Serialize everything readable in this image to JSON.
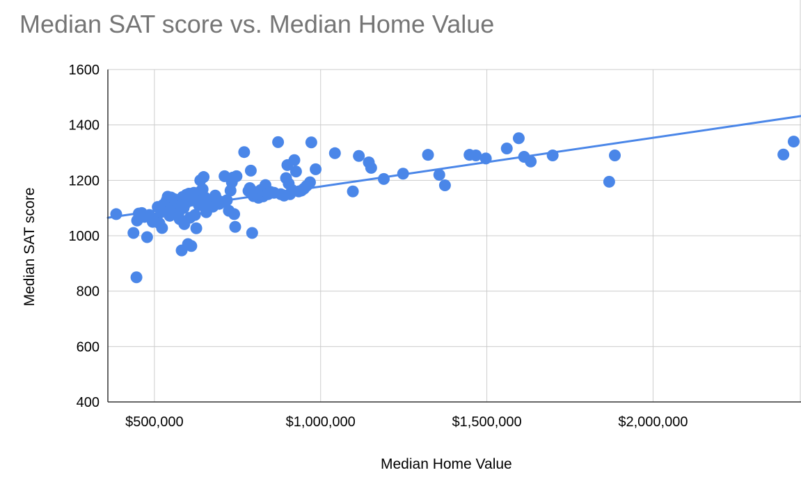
{
  "chart_data": {
    "type": "scatter",
    "title": "Median SAT score vs. Median Home Value",
    "xlabel": "Median Home Value",
    "ylabel": "Median SAT score",
    "xlim": [
      360000,
      2445000
    ],
    "ylim": [
      400,
      1600
    ],
    "x_ticks": [
      {
        "value": 500000,
        "label": "$500,000"
      },
      {
        "value": 1000000,
        "label": "$1,000,000"
      },
      {
        "value": 1500000,
        "label": "$1,500,000"
      },
      {
        "value": 2000000,
        "label": "$2,000,000"
      }
    ],
    "y_ticks": [
      {
        "value": 400,
        "label": "400"
      },
      {
        "value": 600,
        "label": "600"
      },
      {
        "value": 800,
        "label": "800"
      },
      {
        "value": 1000,
        "label": "1000"
      },
      {
        "value": 1200,
        "label": "1200"
      },
      {
        "value": 1400,
        "label": "1400"
      },
      {
        "value": 1600,
        "label": "1600"
      }
    ],
    "grid": true,
    "legend": "none",
    "colors": {
      "points": "#4a86e8",
      "trendline": "#4a86e8",
      "grid": "#cccccc",
      "title": "#757575"
    },
    "trendline": {
      "type": "linear",
      "from": [
        360000,
        1065
      ],
      "to": [
        2445000,
        1432
      ]
    },
    "series": [
      {
        "points": [
          [
            385000,
            1078
          ],
          [
            437000,
            1010
          ],
          [
            446000,
            850
          ],
          [
            453000,
            1080
          ],
          [
            448000,
            1055
          ],
          [
            462000,
            1082
          ],
          [
            470000,
            1068
          ],
          [
            478000,
            995
          ],
          [
            485000,
            1075
          ],
          [
            495000,
            1050
          ],
          [
            503000,
            1062
          ],
          [
            510000,
            1104
          ],
          [
            515000,
            1045
          ],
          [
            520000,
            1085
          ],
          [
            523000,
            1028
          ],
          [
            527000,
            1112
          ],
          [
            532000,
            1095
          ],
          [
            537000,
            1128
          ],
          [
            540000,
            1141
          ],
          [
            542000,
            1088
          ],
          [
            546000,
            1072
          ],
          [
            550000,
            1138
          ],
          [
            553000,
            1118
          ],
          [
            556000,
            1102
          ],
          [
            560000,
            1132
          ],
          [
            564000,
            1090
          ],
          [
            568000,
            1121
          ],
          [
            572000,
            1080
          ],
          [
            576000,
            1060
          ],
          [
            579000,
            1132
          ],
          [
            582000,
            947
          ],
          [
            585000,
            1140
          ],
          [
            588000,
            1100
          ],
          [
            590000,
            1042
          ],
          [
            593000,
            1115
          ],
          [
            596000,
            1148
          ],
          [
            598000,
            1125
          ],
          [
            601000,
            970
          ],
          [
            604000,
            1152
          ],
          [
            607000,
            1065
          ],
          [
            611000,
            963
          ],
          [
            615000,
            1131
          ],
          [
            619000,
            1155
          ],
          [
            622000,
            1075
          ],
          [
            626000,
            1027
          ],
          [
            630000,
            1150
          ],
          [
            634000,
            1110
          ],
          [
            638000,
            1200
          ],
          [
            641000,
            1163
          ],
          [
            645000,
            1168
          ],
          [
            648000,
            1212
          ],
          [
            652000,
            1138
          ],
          [
            656000,
            1085
          ],
          [
            660000,
            1098
          ],
          [
            664000,
            1120
          ],
          [
            670000,
            1127
          ],
          [
            676000,
            1105
          ],
          [
            683000,
            1145
          ],
          [
            689000,
            1130
          ],
          [
            695000,
            1115
          ],
          [
            703000,
            1122
          ],
          [
            711000,
            1215
          ],
          [
            718000,
            1128
          ],
          [
            724000,
            1090
          ],
          [
            729000,
            1163
          ],
          [
            733000,
            1193
          ],
          [
            736000,
            1210
          ],
          [
            740000,
            1078
          ],
          [
            743000,
            1032
          ],
          [
            747000,
            1215
          ],
          [
            770000,
            1302
          ],
          [
            783000,
            1162
          ],
          [
            787000,
            1172
          ],
          [
            790000,
            1235
          ],
          [
            794000,
            1010
          ],
          [
            798000,
            1143
          ],
          [
            803000,
            1152
          ],
          [
            808000,
            1158
          ],
          [
            813000,
            1137
          ],
          [
            820000,
            1165
          ],
          [
            827000,
            1142
          ],
          [
            834000,
            1183
          ],
          [
            842000,
            1150
          ],
          [
            850000,
            1158
          ],
          [
            860000,
            1155
          ],
          [
            872000,
            1338
          ],
          [
            880000,
            1150
          ],
          [
            890000,
            1145
          ],
          [
            896000,
            1208
          ],
          [
            900000,
            1255
          ],
          [
            904000,
            1188
          ],
          [
            908000,
            1150
          ],
          [
            914000,
            1165
          ],
          [
            921000,
            1273
          ],
          [
            926000,
            1232
          ],
          [
            934000,
            1160
          ],
          [
            942000,
            1163
          ],
          [
            950000,
            1170
          ],
          [
            958000,
            1180
          ],
          [
            968000,
            1193
          ],
          [
            972000,
            1337
          ],
          [
            985000,
            1240
          ],
          [
            1043000,
            1298
          ],
          [
            1097000,
            1160
          ],
          [
            1115000,
            1288
          ],
          [
            1145000,
            1265
          ],
          [
            1152000,
            1245
          ],
          [
            1190000,
            1205
          ],
          [
            1248000,
            1224
          ],
          [
            1323000,
            1292
          ],
          [
            1357000,
            1220
          ],
          [
            1374000,
            1182
          ],
          [
            1448000,
            1292
          ],
          [
            1467000,
            1290
          ],
          [
            1497000,
            1279
          ],
          [
            1560000,
            1315
          ],
          [
            1596000,
            1352
          ],
          [
            1612000,
            1285
          ],
          [
            1632000,
            1268
          ],
          [
            1698000,
            1290
          ],
          [
            1868000,
            1195
          ],
          [
            1885000,
            1290
          ],
          [
            2392000,
            1293
          ],
          [
            2423000,
            1340
          ]
        ]
      }
    ]
  }
}
